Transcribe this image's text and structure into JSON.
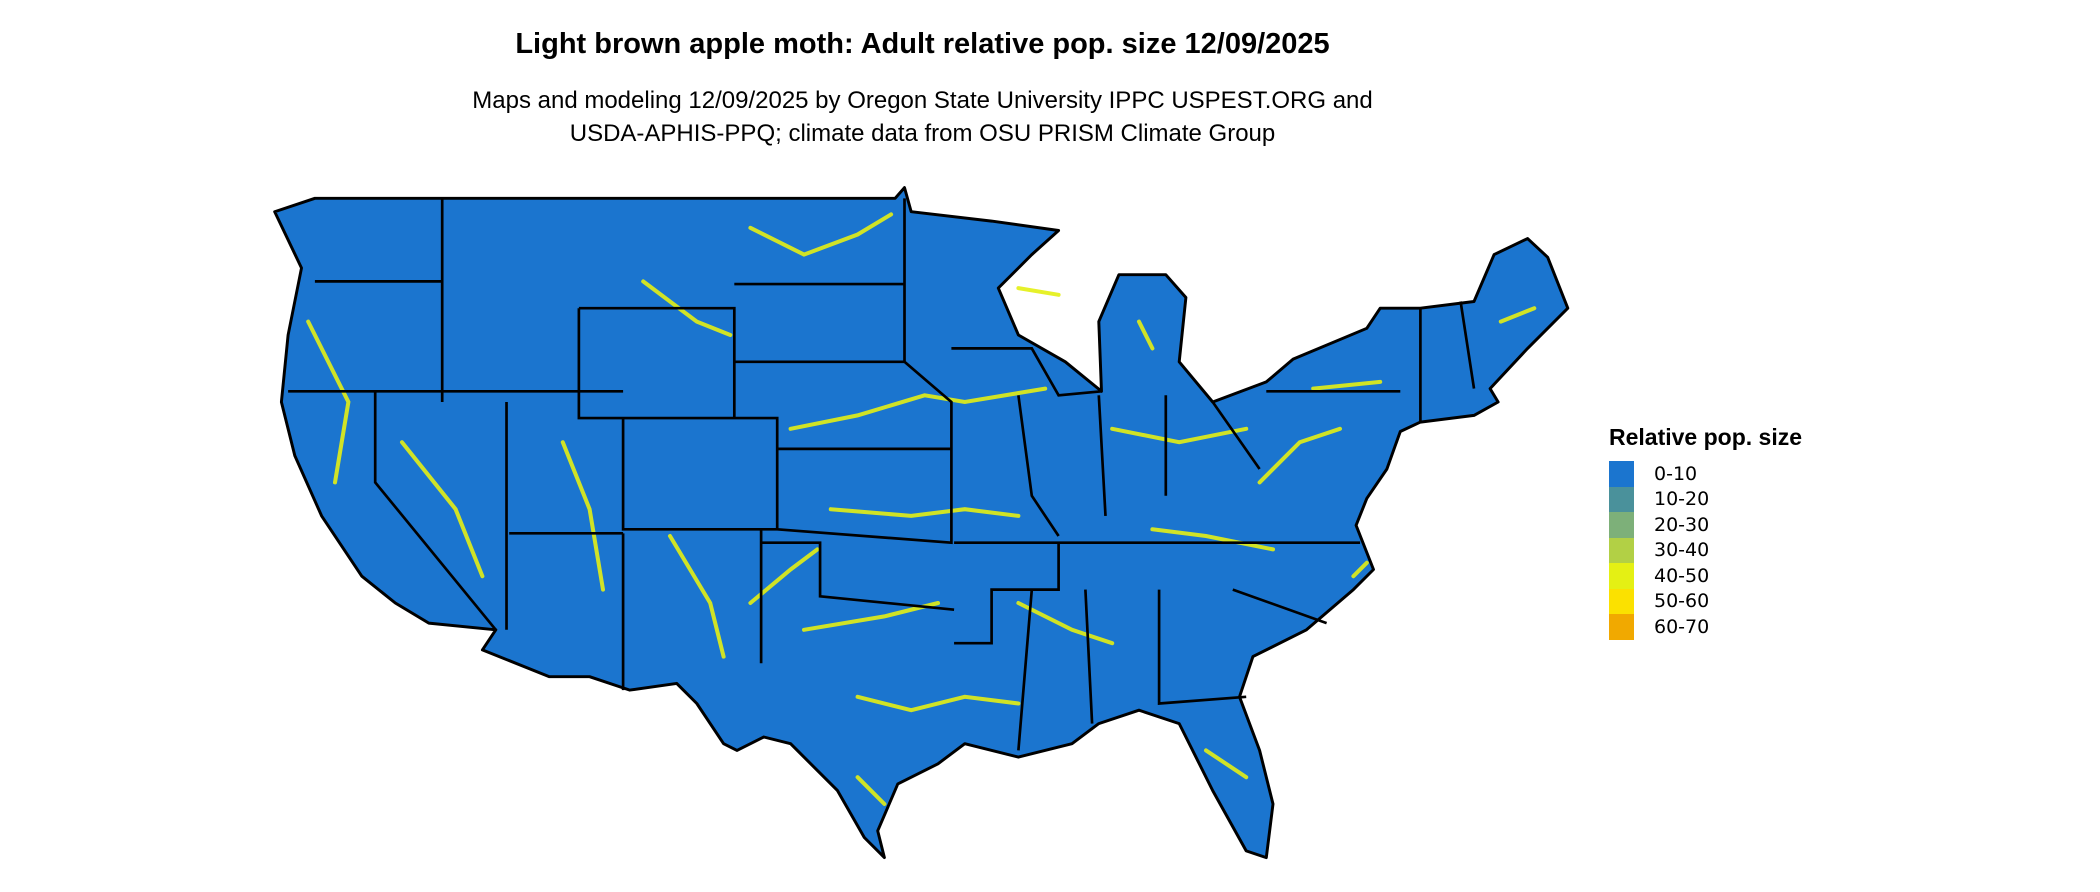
{
  "title": "Light brown apple moth: Adult relative pop. size 12/09/2025",
  "subtitle_lines": [
    "Maps and modeling 12/09/2025 by Oregon State University IPPC USPEST.ORG and",
    "USDA-APHIS-PPQ; climate data from OSU PRISM Climate Group"
  ],
  "map": {
    "region": "Contiguous United States",
    "base_color": "#1b75cf",
    "border_color": "#000000"
  },
  "legend": {
    "title": "Relative pop. size",
    "items": [
      {
        "label": "0-10",
        "color": "#1b75cf"
      },
      {
        "label": "10-20",
        "color": "#4a919b"
      },
      {
        "label": "20-30",
        "color": "#7db079"
      },
      {
        "label": "30-40",
        "color": "#b2d045"
      },
      {
        "label": "40-50",
        "color": "#e4f014"
      },
      {
        "label": "50-60",
        "color": "#fbe100"
      },
      {
        "label": "60-70",
        "color": "#f1a900"
      }
    ]
  }
}
